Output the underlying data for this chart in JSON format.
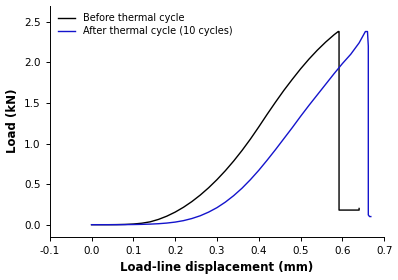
{
  "title": "",
  "xlabel": "Load-line displacement (mm)",
  "ylabel": "Load (kN)",
  "xlim": [
    -0.1,
    0.7
  ],
  "ylim": [
    -0.15,
    2.7
  ],
  "xticks": [
    -0.1,
    0.0,
    0.1,
    0.2,
    0.3,
    0.4,
    0.5,
    0.6,
    0.7
  ],
  "yticks": [
    0.0,
    0.5,
    1.0,
    1.5,
    2.0,
    2.5
  ],
  "legend": [
    "Before thermal cycle",
    "After thermal cycle (10 cycles)"
  ],
  "legend_colors": [
    "black",
    "#1414cc"
  ],
  "black_curve": {
    "color": "black",
    "x": [
      0.0,
      0.02,
      0.04,
      0.06,
      0.08,
      0.1,
      0.12,
      0.14,
      0.16,
      0.18,
      0.2,
      0.22,
      0.24,
      0.26,
      0.28,
      0.3,
      0.32,
      0.34,
      0.36,
      0.38,
      0.4,
      0.42,
      0.44,
      0.46,
      0.48,
      0.5,
      0.52,
      0.54,
      0.56,
      0.58,
      0.59,
      0.592,
      0.592,
      0.64,
      0.64
    ],
    "y": [
      0.0,
      0.0,
      0.0,
      0.001,
      0.003,
      0.008,
      0.018,
      0.035,
      0.065,
      0.105,
      0.155,
      0.215,
      0.285,
      0.365,
      0.455,
      0.555,
      0.665,
      0.785,
      0.915,
      1.055,
      1.205,
      1.36,
      1.51,
      1.655,
      1.79,
      1.92,
      2.04,
      2.15,
      2.25,
      2.34,
      2.38,
      2.38,
      0.18,
      0.18,
      0.2
    ]
  },
  "blue_curve": {
    "color": "#1414cc",
    "x": [
      0.0,
      0.02,
      0.04,
      0.06,
      0.08,
      0.1,
      0.12,
      0.14,
      0.16,
      0.18,
      0.2,
      0.22,
      0.24,
      0.26,
      0.28,
      0.3,
      0.32,
      0.34,
      0.36,
      0.38,
      0.4,
      0.42,
      0.44,
      0.46,
      0.48,
      0.5,
      0.52,
      0.54,
      0.56,
      0.58,
      0.6,
      0.62,
      0.64,
      0.655,
      0.66,
      0.662,
      0.662,
      0.665,
      0.668
    ],
    "y": [
      0.0,
      0.0,
      0.0,
      0.0,
      0.001,
      0.002,
      0.004,
      0.007,
      0.012,
      0.02,
      0.032,
      0.05,
      0.076,
      0.11,
      0.155,
      0.21,
      0.278,
      0.358,
      0.45,
      0.555,
      0.67,
      0.795,
      0.925,
      1.06,
      1.195,
      1.335,
      1.47,
      1.6,
      1.73,
      1.86,
      1.985,
      2.1,
      2.24,
      2.38,
      2.38,
      2.2,
      0.12,
      0.1,
      0.1
    ]
  },
  "figsize": [
    3.98,
    2.8
  ],
  "dpi": 100
}
